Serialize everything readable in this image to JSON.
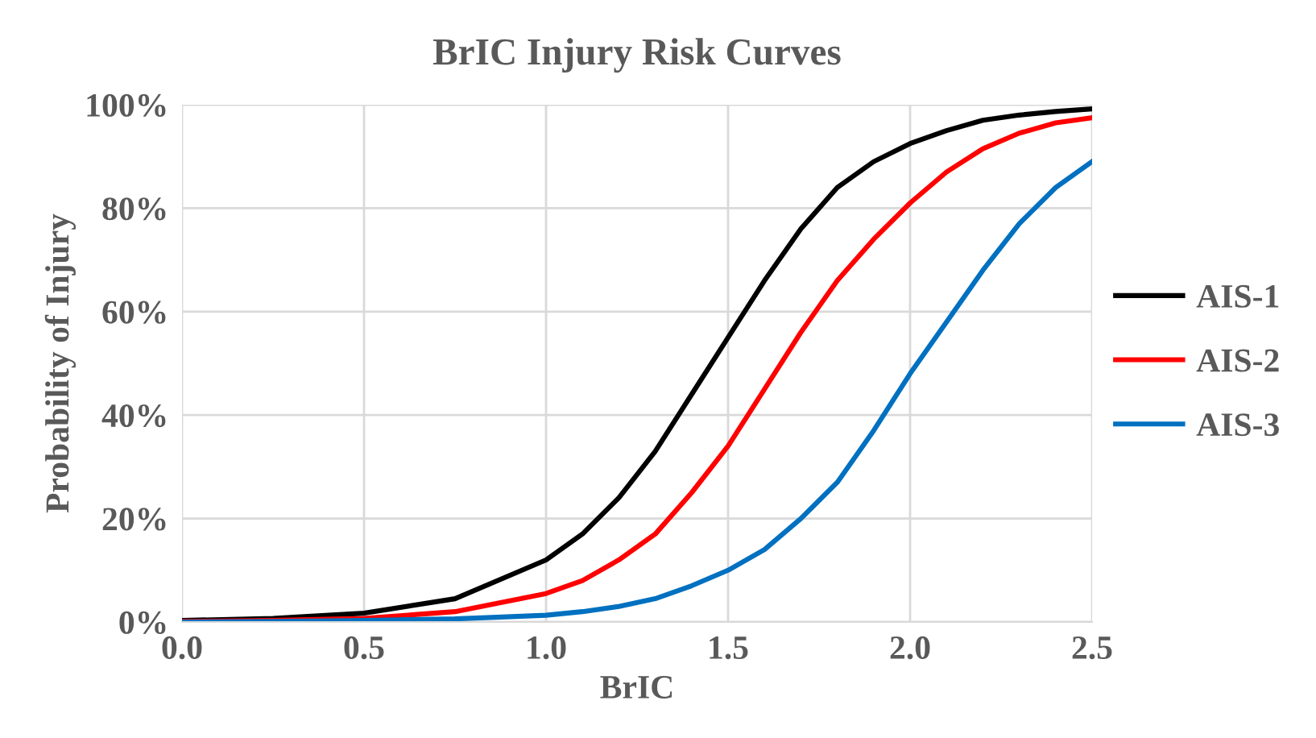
{
  "chart_data": {
    "type": "line",
    "title": "BrIC Injury Risk Curves",
    "xlabel": "BrIC",
    "ylabel": "Probability of Injury",
    "x": [
      0,
      0.25,
      0.5,
      0.75,
      1.0,
      1.1,
      1.2,
      1.3,
      1.4,
      1.5,
      1.6,
      1.7,
      1.8,
      1.9,
      2.0,
      2.1,
      2.2,
      2.3,
      2.4,
      2.5
    ],
    "series": [
      {
        "name": "AIS-1",
        "color": "#000000",
        "values": [
          0.3,
          0.7,
          1.7,
          4.5,
          12,
          17,
          24,
          33,
          44,
          55,
          66,
          76,
          84,
          89,
          92.5,
          95,
          97,
          98,
          98.7,
          99.2
        ]
      },
      {
        "name": "AIS-2",
        "color": "#ff0000",
        "values": [
          0.1,
          0.3,
          0.7,
          2,
          5.5,
          8,
          12,
          17,
          25,
          34,
          45,
          56,
          66,
          74,
          81,
          87,
          91.5,
          94.5,
          96.5,
          97.5
        ]
      },
      {
        "name": "AIS-3",
        "color": "#0070c0",
        "values": [
          0,
          0.1,
          0.3,
          0.6,
          1.3,
          2,
          3,
          4.5,
          7,
          10,
          14,
          20,
          27,
          37,
          48,
          58,
          68,
          77,
          84,
          89
        ]
      }
    ],
    "xlim": [
      0,
      2.5
    ],
    "xticks": [
      {
        "value": 0,
        "label": "0.0"
      },
      {
        "value": 0.5,
        "label": "0.5"
      },
      {
        "value": 1,
        "label": "1.0"
      },
      {
        "value": 1.5,
        "label": "1.5"
      },
      {
        "value": 2,
        "label": "2.0"
      },
      {
        "value": 2.5,
        "label": "2.5"
      }
    ],
    "ylim": [
      0,
      100
    ],
    "yticks": [
      {
        "value": 0,
        "label": "0%"
      },
      {
        "value": 20,
        "label": "20%"
      },
      {
        "value": 40,
        "label": "40%"
      },
      {
        "value": 60,
        "label": "60%"
      },
      {
        "value": 80,
        "label": "80%"
      },
      {
        "value": 100,
        "label": "100%"
      }
    ],
    "grid": true,
    "legend": "right",
    "marker": "none",
    "line_style": "solid"
  }
}
